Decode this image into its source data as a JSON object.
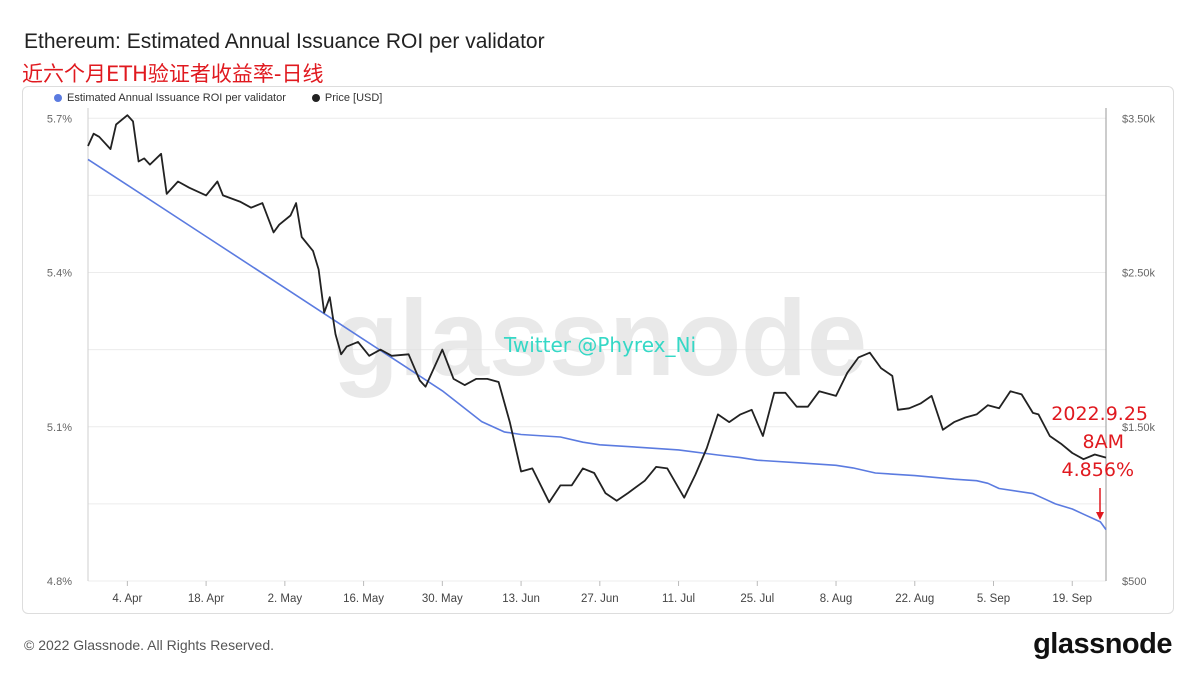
{
  "header": {
    "title": "Ethereum: Estimated Annual Issuance ROI per validator",
    "subtitle": "近六个月ETH验证者收益率-日线"
  },
  "legend": {
    "items": [
      {
        "label": "Estimated Annual Issuance ROI per validator",
        "color": "#5b7be0"
      },
      {
        "label": "Price [USD]",
        "color": "#222222"
      }
    ]
  },
  "watermark": {
    "brand": "glassnode",
    "handle": "Twitter @Phyrex_Ni"
  },
  "annotation": {
    "date": "2022.9.25",
    "time": "8AM",
    "value": "4.856%"
  },
  "footer": {
    "copyright": "© 2022 Glassnode. All Rights Reserved.",
    "brand": "glassnode"
  },
  "chart_data": {
    "type": "line",
    "title": "Ethereum: Estimated Annual Issuance ROI per validator",
    "x_start": "2022-03-28",
    "x_end": "2022-09-25",
    "x_tick_labels": [
      "4. Apr",
      "18. Apr",
      "2. May",
      "16. May",
      "30. May",
      "13. Jun",
      "27. Jun",
      "11. Jul",
      "25. Jul",
      "8. Aug",
      "22. Aug",
      "5. Sep",
      "19. Sep"
    ],
    "x_tick_dates": [
      "2022-04-04",
      "2022-04-18",
      "2022-05-02",
      "2022-05-16",
      "2022-05-30",
      "2022-06-13",
      "2022-06-27",
      "2022-07-11",
      "2022-07-25",
      "2022-08-08",
      "2022-08-22",
      "2022-09-05",
      "2022-09-19"
    ],
    "y_left": {
      "ticks": [
        4.8,
        5.1,
        5.4,
        5.7
      ],
      "tick_labels": [
        "4.8%",
        "5.1%",
        "5.4%",
        "5.7%"
      ],
      "range": [
        4.8,
        5.72
      ]
    },
    "y_right": {
      "ticks": [
        500,
        1500,
        2500,
        3500
      ],
      "tick_labels": [
        "$500",
        "$1.50k",
        "$2.50k",
        "$3.50k"
      ],
      "range": [
        500,
        3500
      ]
    },
    "grid": true,
    "legend_position": "top-left",
    "series": [
      {
        "name": "Estimated Annual Issuance ROI per validator",
        "axis": "left",
        "color": "#5b7be0",
        "points": [
          [
            "2022-03-28",
            5.62
          ],
          [
            "2022-04-04",
            5.57
          ],
          [
            "2022-04-18",
            5.47
          ],
          [
            "2022-05-02",
            5.37
          ],
          [
            "2022-05-16",
            5.27
          ],
          [
            "2022-05-23",
            5.22
          ],
          [
            "2022-05-30",
            5.17
          ],
          [
            "2022-06-06",
            5.11
          ],
          [
            "2022-06-10",
            5.09
          ],
          [
            "2022-06-13",
            5.085
          ],
          [
            "2022-06-20",
            5.08
          ],
          [
            "2022-06-24",
            5.07
          ],
          [
            "2022-06-27",
            5.065
          ],
          [
            "2022-07-04",
            5.06
          ],
          [
            "2022-07-11",
            5.055
          ],
          [
            "2022-07-18",
            5.045
          ],
          [
            "2022-07-22",
            5.04
          ],
          [
            "2022-07-25",
            5.035
          ],
          [
            "2022-08-01",
            5.03
          ],
          [
            "2022-08-08",
            5.025
          ],
          [
            "2022-08-11",
            5.02
          ],
          [
            "2022-08-15",
            5.01
          ],
          [
            "2022-08-22",
            5.005
          ],
          [
            "2022-08-29",
            4.998
          ],
          [
            "2022-09-02",
            4.995
          ],
          [
            "2022-09-04",
            4.99
          ],
          [
            "2022-09-06",
            4.98
          ],
          [
            "2022-09-12",
            4.97
          ],
          [
            "2022-09-14",
            4.96
          ],
          [
            "2022-09-16",
            4.95
          ],
          [
            "2022-09-19",
            4.94
          ],
          [
            "2022-09-21",
            4.93
          ],
          [
            "2022-09-24",
            4.915
          ],
          [
            "2022-09-25",
            4.9
          ]
        ]
      },
      {
        "name": "Price [USD]",
        "axis": "right",
        "color": "#222222",
        "points": [
          [
            "2022-03-28",
            3320
          ],
          [
            "2022-03-29",
            3400
          ],
          [
            "2022-03-30",
            3380
          ],
          [
            "2022-04-01",
            3300
          ],
          [
            "2022-04-02",
            3460
          ],
          [
            "2022-04-04",
            3520
          ],
          [
            "2022-04-05",
            3480
          ],
          [
            "2022-04-06",
            3220
          ],
          [
            "2022-04-07",
            3240
          ],
          [
            "2022-04-08",
            3200
          ],
          [
            "2022-04-10",
            3270
          ],
          [
            "2022-04-11",
            3010
          ],
          [
            "2022-04-13",
            3090
          ],
          [
            "2022-04-15",
            3050
          ],
          [
            "2022-04-18",
            3000
          ],
          [
            "2022-04-20",
            3090
          ],
          [
            "2022-04-21",
            3000
          ],
          [
            "2022-04-24",
            2960
          ],
          [
            "2022-04-26",
            2920
          ],
          [
            "2022-04-28",
            2950
          ],
          [
            "2022-04-30",
            2760
          ],
          [
            "2022-05-01",
            2810
          ],
          [
            "2022-05-03",
            2870
          ],
          [
            "2022-05-04",
            2950
          ],
          [
            "2022-05-05",
            2730
          ],
          [
            "2022-05-07",
            2640
          ],
          [
            "2022-05-08",
            2520
          ],
          [
            "2022-05-09",
            2240
          ],
          [
            "2022-05-10",
            2340
          ],
          [
            "2022-05-11",
            2100
          ],
          [
            "2022-05-12",
            1970
          ],
          [
            "2022-05-13",
            2020
          ],
          [
            "2022-05-15",
            2050
          ],
          [
            "2022-05-17",
            1960
          ],
          [
            "2022-05-19",
            2000
          ],
          [
            "2022-05-21",
            1960
          ],
          [
            "2022-05-24",
            1970
          ],
          [
            "2022-05-26",
            1800
          ],
          [
            "2022-05-27",
            1760
          ],
          [
            "2022-05-30",
            2000
          ],
          [
            "2022-06-01",
            1810
          ],
          [
            "2022-06-03",
            1770
          ],
          [
            "2022-06-05",
            1810
          ],
          [
            "2022-06-07",
            1810
          ],
          [
            "2022-06-09",
            1790
          ],
          [
            "2022-06-11",
            1530
          ],
          [
            "2022-06-13",
            1210
          ],
          [
            "2022-06-15",
            1230
          ],
          [
            "2022-06-18",
            1010
          ],
          [
            "2022-06-20",
            1120
          ],
          [
            "2022-06-22",
            1120
          ],
          [
            "2022-06-24",
            1230
          ],
          [
            "2022-06-26",
            1200
          ],
          [
            "2022-06-28",
            1070
          ],
          [
            "2022-06-30",
            1020
          ],
          [
            "2022-07-02",
            1070
          ],
          [
            "2022-07-05",
            1150
          ],
          [
            "2022-07-07",
            1240
          ],
          [
            "2022-07-09",
            1230
          ],
          [
            "2022-07-12",
            1040
          ],
          [
            "2022-07-14",
            1190
          ],
          [
            "2022-07-16",
            1360
          ],
          [
            "2022-07-18",
            1580
          ],
          [
            "2022-07-20",
            1530
          ],
          [
            "2022-07-22",
            1580
          ],
          [
            "2022-07-24",
            1610
          ],
          [
            "2022-07-26",
            1440
          ],
          [
            "2022-07-28",
            1720
          ],
          [
            "2022-07-30",
            1720
          ],
          [
            "2022-08-01",
            1630
          ],
          [
            "2022-08-03",
            1630
          ],
          [
            "2022-08-05",
            1730
          ],
          [
            "2022-08-08",
            1700
          ],
          [
            "2022-08-10",
            1850
          ],
          [
            "2022-08-12",
            1950
          ],
          [
            "2022-08-14",
            1980
          ],
          [
            "2022-08-16",
            1880
          ],
          [
            "2022-08-18",
            1830
          ],
          [
            "2022-08-19",
            1610
          ],
          [
            "2022-08-21",
            1620
          ],
          [
            "2022-08-23",
            1650
          ],
          [
            "2022-08-25",
            1700
          ],
          [
            "2022-08-27",
            1480
          ],
          [
            "2022-08-29",
            1530
          ],
          [
            "2022-08-31",
            1560
          ],
          [
            "2022-09-02",
            1580
          ],
          [
            "2022-09-04",
            1640
          ],
          [
            "2022-09-06",
            1620
          ],
          [
            "2022-09-08",
            1730
          ],
          [
            "2022-09-10",
            1710
          ],
          [
            "2022-09-12",
            1590
          ],
          [
            "2022-09-13",
            1580
          ],
          [
            "2022-09-15",
            1440
          ],
          [
            "2022-09-17",
            1390
          ],
          [
            "2022-09-19",
            1330
          ],
          [
            "2022-09-21",
            1290
          ],
          [
            "2022-09-23",
            1320
          ],
          [
            "2022-09-25",
            1300
          ]
        ]
      }
    ]
  }
}
